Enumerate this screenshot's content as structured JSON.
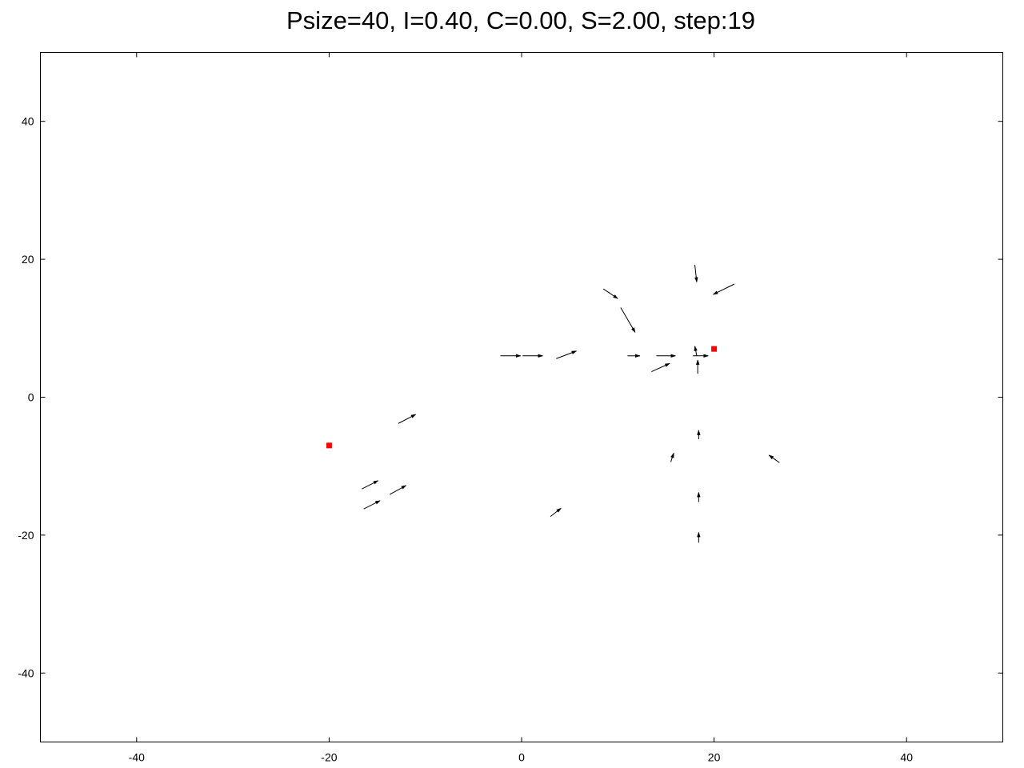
{
  "chart_data": {
    "type": "scatter",
    "title": "Psize=40, I=0.40, C=0.00, S=2.00, step:19",
    "xlabel": "",
    "ylabel": "",
    "xlim": [
      -50,
      50
    ],
    "ylim": [
      -50,
      50
    ],
    "grid": false,
    "x_ticks": [
      -40,
      -20,
      0,
      20,
      40
    ],
    "y_ticks": [
      -40,
      -20,
      0,
      20,
      40
    ],
    "x_tick_labels": [
      "-40",
      "-20",
      "0",
      "20",
      "40"
    ],
    "y_tick_labels": [
      "-40",
      "-20",
      "0",
      "20",
      "40"
    ],
    "marker_color": "#ff0000",
    "arrow_color": "#000000",
    "markers": [
      {
        "x": -20,
        "y": -7
      },
      {
        "x": 20,
        "y": 7
      }
    ],
    "arrows": [
      {
        "x": -2.2,
        "y": 6.0,
        "dx": 2.1,
        "dy": 0.0
      },
      {
        "x": 0.1,
        "y": 6.0,
        "dx": 2.1,
        "dy": 0.0
      },
      {
        "x": 3.6,
        "y": 5.6,
        "dx": 2.1,
        "dy": 1.1
      },
      {
        "x": 11.0,
        "y": 6.0,
        "dx": 1.3,
        "dy": 0.0
      },
      {
        "x": 14.0,
        "y": 6.0,
        "dx": 2.0,
        "dy": 0.0
      },
      {
        "x": 13.5,
        "y": 3.7,
        "dx": 1.9,
        "dy": 1.2
      },
      {
        "x": 17.8,
        "y": 6.0,
        "dx": 1.6,
        "dy": 0.0
      },
      {
        "x": 18.2,
        "y": 6.0,
        "dx": -0.2,
        "dy": 1.4
      },
      {
        "x": 18.3,
        "y": 3.4,
        "dx": 0.0,
        "dy": 2.0
      },
      {
        "x": 18.0,
        "y": 19.2,
        "dx": 0.2,
        "dy": -2.5
      },
      {
        "x": 22.1,
        "y": 16.4,
        "dx": -2.2,
        "dy": -1.5
      },
      {
        "x": 8.5,
        "y": 15.7,
        "dx": 1.5,
        "dy": -1.4
      },
      {
        "x": 10.3,
        "y": 13.0,
        "dx": 1.5,
        "dy": -3.6
      },
      {
        "x": -12.8,
        "y": -3.8,
        "dx": 1.8,
        "dy": 1.3
      },
      {
        "x": -16.6,
        "y": -13.3,
        "dx": 1.7,
        "dy": 1.2
      },
      {
        "x": -13.7,
        "y": -14.1,
        "dx": 1.7,
        "dy": 1.3
      },
      {
        "x": -16.4,
        "y": -16.2,
        "dx": 1.7,
        "dy": 1.2
      },
      {
        "x": 3.0,
        "y": -17.3,
        "dx": 1.1,
        "dy": 1.2
      },
      {
        "x": 15.5,
        "y": -9.4,
        "dx": 0.3,
        "dy": 1.3
      },
      {
        "x": 18.4,
        "y": -6.1,
        "dx": 0.0,
        "dy": 1.3
      },
      {
        "x": 18.4,
        "y": -15.2,
        "dx": 0.0,
        "dy": 1.4
      },
      {
        "x": 18.4,
        "y": -21.1,
        "dx": 0.0,
        "dy": 1.5
      },
      {
        "x": 26.8,
        "y": -9.5,
        "dx": -1.1,
        "dy": 1.1
      }
    ]
  }
}
